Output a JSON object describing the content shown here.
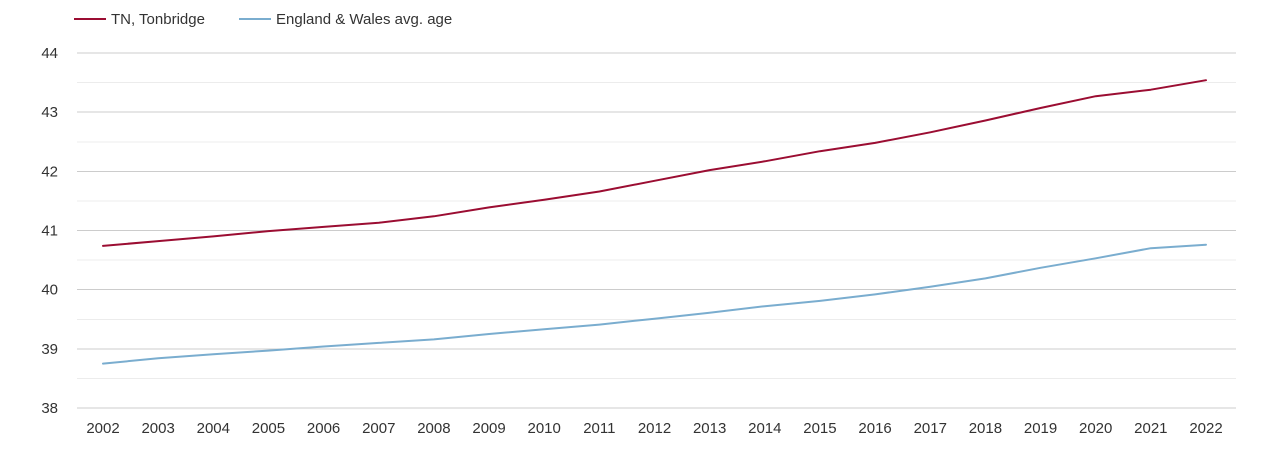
{
  "chart_data": {
    "type": "line",
    "title": "",
    "xlabel": "",
    "ylabel": "",
    "x": [
      "2002",
      "2003",
      "2004",
      "2005",
      "2006",
      "2007",
      "2008",
      "2009",
      "2010",
      "2011",
      "2012",
      "2013",
      "2014",
      "2015",
      "2016",
      "2017",
      "2018",
      "2019",
      "2020",
      "2021",
      "2022"
    ],
    "ylim": [
      38,
      44
    ],
    "yticks": [
      "38",
      "39",
      "40",
      "41",
      "42",
      "43",
      "44"
    ],
    "grid": true,
    "legend_position": "top-left",
    "series": [
      {
        "name": "TN, Tonbridge",
        "color": "#9b0d32",
        "values": [
          40.74,
          40.82,
          40.9,
          40.99,
          41.06,
          41.13,
          41.24,
          41.39,
          41.52,
          41.66,
          41.84,
          42.02,
          42.17,
          42.34,
          42.48,
          42.66,
          42.86,
          43.07,
          43.27,
          43.38,
          43.54
        ]
      },
      {
        "name": "England & Wales avg. age",
        "color": "#7aadcf",
        "values": [
          38.75,
          38.84,
          38.91,
          38.97,
          39.04,
          39.1,
          39.16,
          39.25,
          39.33,
          39.41,
          39.51,
          39.61,
          39.72,
          39.81,
          39.92,
          40.05,
          40.19,
          40.37,
          40.53,
          40.7,
          40.76
        ]
      }
    ]
  }
}
